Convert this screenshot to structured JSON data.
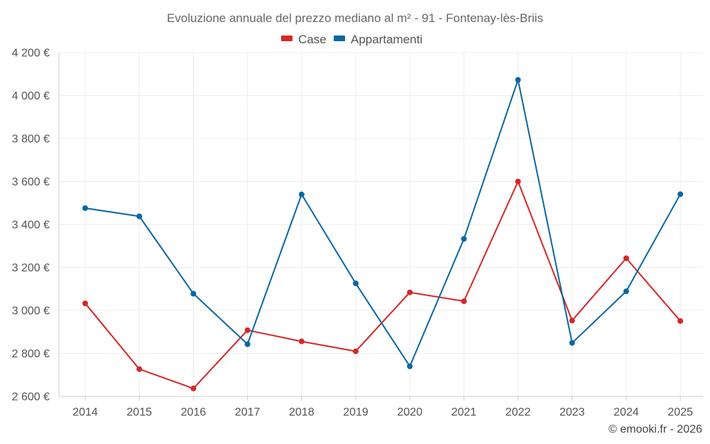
{
  "chart_data": {
    "type": "line",
    "title": "Evoluzione annuale del prezzo mediano al m² - 91 - Fontenay-lès-Briis",
    "categories": [
      "2014",
      "2015",
      "2016",
      "2017",
      "2018",
      "2019",
      "2020",
      "2021",
      "2022",
      "2023",
      "2024",
      "2025"
    ],
    "ylim": [
      2600,
      4200
    ],
    "yticks": [
      2600,
      2800,
      3000,
      3200,
      3400,
      3600,
      3800,
      4000,
      4200
    ],
    "ytick_labels": [
      "2 600 €",
      "2 800 €",
      "3 000 €",
      "3 200 €",
      "3 400 €",
      "3 600 €",
      "3 800 €",
      "4 000 €",
      "4 200 €"
    ],
    "grid": true,
    "legend_position": "top-center",
    "series": [
      {
        "name": "Case",
        "color": "#d62728",
        "values": [
          3033,
          2727,
          2637,
          2908,
          2856,
          2810,
          3084,
          3043,
          3600,
          2953,
          3243,
          2951
        ]
      },
      {
        "name": "Appartamenti",
        "color": "#0a67a3",
        "values": [
          3476,
          3438,
          3078,
          2843,
          3540,
          3126,
          2740,
          3333,
          4073,
          2849,
          3089,
          3541
        ]
      }
    ]
  },
  "credit": "© emooki.fr - 2026"
}
